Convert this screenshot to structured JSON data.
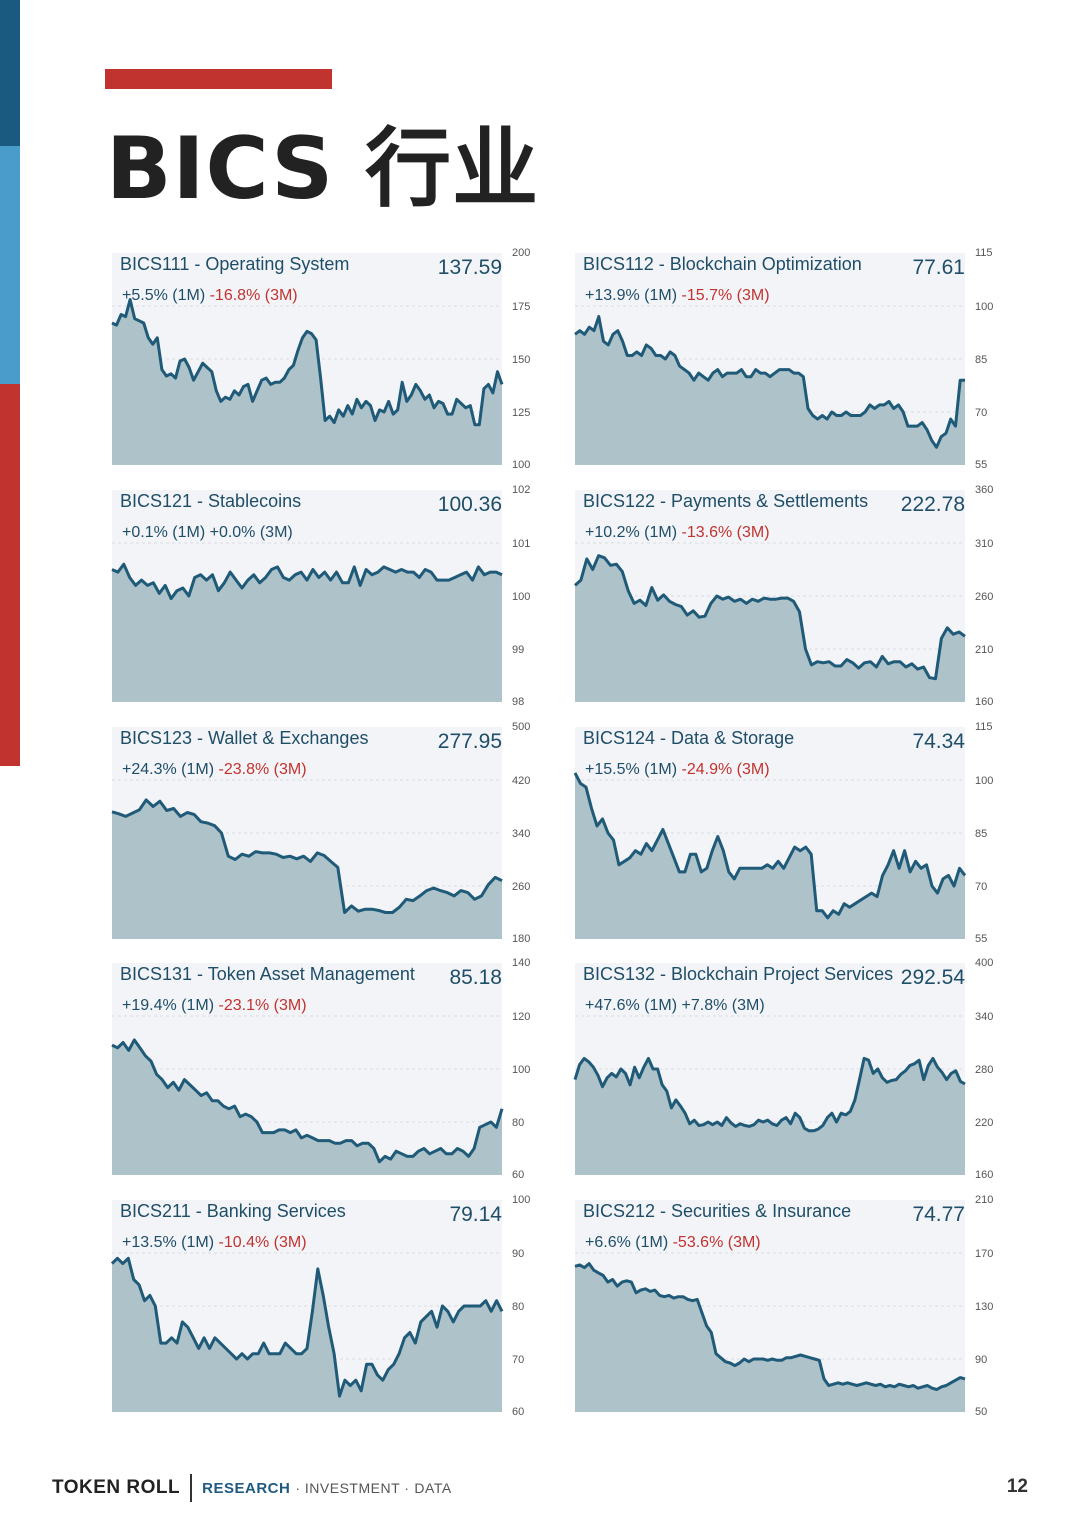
{
  "page_title": "BICS 行业",
  "colors": {
    "dark_blue": "#1a5a80",
    "light_blue": "#4a9ccb",
    "red": "#c1332f",
    "line": "#1f5a78",
    "fill": "#adc2c9",
    "panel": "#f3f4f8"
  },
  "footer": {
    "brand": "TOKEN ROLL",
    "tag_research": "RESEARCH",
    "tag_investment": "· INVESTMENT ·",
    "tag_data": "DATA"
  },
  "page_number": "12",
  "chart_data": [
    {
      "type": "area",
      "title": "BICS111 - Operating System",
      "value": "137.59",
      "perf_1m": "+5.5% (1M)",
      "perf_3m": "-16.8% (3M)",
      "yticks": [
        "200",
        "175",
        "150",
        "125",
        "100"
      ],
      "ylim": [
        100,
        200
      ],
      "values": [
        167,
        166,
        171,
        170,
        178,
        169,
        168,
        167,
        160,
        157,
        160,
        145,
        142,
        143,
        141,
        149,
        150,
        146,
        140,
        144,
        148,
        146,
        144,
        135,
        130,
        132,
        131,
        135,
        133,
        137,
        138,
        130,
        135,
        140,
        141,
        138,
        139,
        139,
        141,
        145,
        147,
        154,
        160,
        163,
        162,
        159,
        141,
        121,
        123,
        120,
        126,
        123,
        128,
        124,
        131,
        127,
        130,
        128,
        121,
        126,
        125,
        130,
        124,
        126,
        139,
        130,
        133,
        138,
        135,
        131,
        133,
        127,
        130,
        129,
        124,
        124,
        131,
        129,
        127,
        128,
        119,
        119,
        136,
        138,
        134,
        144,
        138
      ]
    },
    {
      "type": "area",
      "title": "BICS112 - Blockchain Optimization",
      "value": "77.61",
      "perf_1m": "+13.9% (1M)",
      "perf_3m": "-15.7% (3M)",
      "yticks": [
        "115",
        "100",
        "85",
        "70",
        "55"
      ],
      "ylim": [
        55,
        115
      ],
      "values": [
        92,
        93,
        92,
        94,
        93,
        97,
        90,
        89,
        92,
        93,
        90,
        86,
        86,
        87,
        86,
        89,
        88,
        86,
        86,
        85,
        87,
        86,
        83,
        82,
        81,
        79,
        81,
        80,
        79,
        81,
        82,
        80,
        81,
        81,
        81,
        82,
        80,
        80,
        82,
        81,
        81,
        80,
        81,
        82,
        82,
        82,
        81,
        81,
        80,
        71,
        69,
        68,
        69,
        68,
        70,
        69,
        69,
        70,
        69,
        69,
        69,
        70,
        72,
        71,
        72,
        72,
        73,
        71,
        72,
        70,
        66,
        66,
        66,
        67,
        65,
        62,
        60,
        63,
        64,
        68,
        66,
        79,
        79
      ]
    },
    {
      "type": "area",
      "title": "BICS121 - Stablecoins",
      "value": "100.36",
      "perf_1m": "+0.1% (1M)",
      "perf_3m": "+0.0% (3M)",
      "yticks": [
        "102",
        "101",
        "100",
        "99",
        "98"
      ],
      "ylim": [
        98,
        102
      ],
      "values": [
        100.5,
        100.45,
        100.6,
        100.35,
        100.2,
        100.3,
        100.2,
        100.25,
        100.05,
        100.2,
        99.95,
        100.1,
        100.15,
        100,
        100.35,
        100.4,
        100.3,
        100.4,
        100.1,
        100.25,
        100.45,
        100.3,
        100.15,
        100.3,
        100.4,
        100.25,
        100.35,
        100.5,
        100.55,
        100.35,
        100.3,
        100.4,
        100.45,
        100.3,
        100.5,
        100.35,
        100.45,
        100.3,
        100.45,
        100.25,
        100.25,
        100.55,
        100.2,
        100.5,
        100.4,
        100.45,
        100.55,
        100.5,
        100.45,
        100.5,
        100.45,
        100.45,
        100.35,
        100.5,
        100.45,
        100.3,
        100.3,
        100.3,
        100.35,
        100.4,
        100.45,
        100.3,
        100.55,
        100.4,
        100.45,
        100.45,
        100.4
      ]
    },
    {
      "type": "area",
      "title": "BICS122 - Payments & Settlements",
      "value": "222.78",
      "perf_1m": "+10.2% (1M)",
      "perf_3m": "-13.6% (3M)",
      "yticks": [
        "360",
        "310",
        "260",
        "210",
        "160"
      ],
      "ylim": [
        160,
        360
      ],
      "values": [
        270,
        275,
        295,
        285,
        298,
        296,
        289,
        290,
        283,
        265,
        253,
        256,
        251,
        268,
        256,
        261,
        255,
        252,
        250,
        242,
        246,
        240,
        241,
        253,
        260,
        257,
        259,
        255,
        257,
        253,
        257,
        255,
        258,
        257,
        257,
        258,
        258,
        255,
        245,
        210,
        195,
        198,
        197,
        198,
        194,
        194,
        200,
        197,
        192,
        197,
        198,
        193,
        203,
        196,
        198,
        198,
        193,
        196,
        191,
        193,
        183,
        182,
        220,
        230,
        224,
        226,
        222
      ]
    },
    {
      "type": "area",
      "title": "BICS123 - Wallet & Exchanges",
      "value": "277.95",
      "perf_1m": "+24.3% (1M)",
      "perf_3m": "-23.8% (3M)",
      "yticks": [
        "500",
        "420",
        "340",
        "260",
        "180"
      ],
      "ylim": [
        180,
        500
      ],
      "values": [
        372,
        369,
        365,
        370,
        375,
        390,
        380,
        388,
        374,
        377,
        365,
        371,
        368,
        357,
        355,
        351,
        340,
        305,
        300,
        308,
        305,
        312,
        310,
        310,
        308,
        303,
        305,
        301,
        305,
        297,
        310,
        306,
        297,
        288,
        220,
        230,
        222,
        225,
        225,
        223,
        220,
        220,
        228,
        240,
        238,
        245,
        253,
        257,
        253,
        250,
        245,
        253,
        250,
        240,
        245,
        262,
        273,
        268
      ]
    },
    {
      "type": "area",
      "title": "BICS124 - Data & Storage",
      "value": "74.34",
      "perf_1m": "+15.5% (1M)",
      "perf_3m": "-24.9% (3M)",
      "yticks": [
        "115",
        "100",
        "85",
        "70",
        "55"
      ],
      "ylim": [
        55,
        115
      ],
      "values": [
        102,
        99,
        98,
        92,
        87,
        89,
        85,
        83,
        76,
        77,
        78,
        80,
        79,
        82,
        80,
        83,
        86,
        82,
        78,
        74,
        74,
        79,
        79,
        74,
        75,
        80,
        84,
        80,
        74,
        72,
        75,
        75,
        75,
        75,
        75,
        76,
        75,
        77,
        75,
        78,
        81,
        80,
        81,
        79,
        63,
        63,
        61,
        63,
        62,
        65,
        64,
        65,
        66,
        67,
        68,
        67,
        73,
        76,
        80,
        75,
        80,
        74,
        77,
        75,
        76,
        70,
        68,
        72,
        73,
        70,
        75,
        73
      ]
    },
    {
      "type": "area",
      "title": "BICS131 - Token Asset Management",
      "value": "85.18",
      "perf_1m": "+19.4% (1M)",
      "perf_3m": "-23.1% (3M)",
      "yticks": [
        "140",
        "120",
        "100",
        "80",
        "60"
      ],
      "ylim": [
        60,
        140
      ],
      "values": [
        109,
        108,
        110,
        107,
        111,
        108,
        105,
        103,
        98,
        96,
        93,
        95,
        92,
        96,
        94,
        92,
        90,
        91,
        88,
        88,
        86,
        85,
        86,
        82,
        83,
        82,
        80,
        76,
        76,
        76,
        77,
        77,
        76,
        77,
        74,
        75,
        74,
        73,
        73,
        73,
        72,
        72,
        73,
        73,
        71,
        72,
        72,
        70,
        65,
        67,
        66,
        69,
        68,
        67,
        67,
        69,
        70,
        68,
        69,
        70,
        68,
        68,
        70,
        69,
        67,
        70,
        78,
        79,
        80,
        78,
        85
      ]
    },
    {
      "type": "area",
      "title": "BICS132 - Blockchain Project Services",
      "value": "292.54",
      "perf_1m": "+47.6% (1M)",
      "perf_3m": "+7.8% (3M)",
      "yticks": [
        "400",
        "340",
        "280",
        "220",
        "160"
      ],
      "ylim": [
        160,
        400
      ],
      "values": [
        268,
        285,
        292,
        288,
        282,
        273,
        260,
        270,
        275,
        271,
        280,
        275,
        262,
        282,
        270,
        282,
        292,
        280,
        280,
        262,
        255,
        236,
        245,
        238,
        230,
        218,
        222,
        216,
        217,
        220,
        217,
        220,
        216,
        225,
        219,
        215,
        218,
        216,
        215,
        217,
        222,
        220,
        222,
        218,
        216,
        222,
        225,
        218,
        230,
        225,
        213,
        210,
        210,
        212,
        216,
        225,
        230,
        220,
        230,
        228,
        232,
        245,
        268,
        292,
        290,
        275,
        280,
        270,
        265,
        267,
        268,
        274,
        278,
        284,
        286,
        290,
        268,
        284,
        292,
        282,
        276,
        268,
        275,
        278,
        266,
        263
      ]
    },
    {
      "type": "area",
      "title": "BICS211 - Banking Services",
      "value": "79.14",
      "perf_1m": "+13.5% (1M)",
      "perf_3m": "-10.4% (3M)",
      "yticks": [
        "100",
        "90",
        "80",
        "70",
        "60"
      ],
      "ylim": [
        60,
        100
      ],
      "values": [
        88,
        89,
        88,
        89,
        85,
        84,
        81,
        82,
        80,
        73,
        73,
        74,
        73,
        77,
        76,
        74,
        72,
        74,
        72,
        74,
        73,
        72,
        71,
        70,
        71,
        70,
        71,
        71,
        73,
        71,
        71,
        71,
        73,
        72,
        71,
        71,
        72,
        79,
        87,
        82,
        76,
        71,
        63,
        66,
        65,
        66,
        64,
        69,
        69,
        67,
        66,
        68,
        69,
        71,
        74,
        75,
        73,
        77,
        78,
        79,
        76,
        80,
        79,
        77,
        79,
        80,
        80,
        80,
        80,
        81,
        79,
        81,
        79
      ]
    },
    {
      "type": "area",
      "title": "BICS212 - Securities & Insurance",
      "value": "74.77",
      "perf_1m": "+6.6% (1M)",
      "perf_3m": "-53.6% (3M)",
      "yticks": [
        "210",
        "170",
        "130",
        "90",
        "50"
      ],
      "ylim": [
        50,
        210
      ],
      "values": [
        160,
        161,
        159,
        162,
        157,
        155,
        153,
        148,
        150,
        145,
        148,
        149,
        148,
        140,
        142,
        143,
        141,
        142,
        138,
        137,
        138,
        136,
        137,
        137,
        135,
        134,
        135,
        125,
        115,
        110,
        94,
        91,
        88,
        87,
        85,
        87,
        90,
        88,
        90,
        90,
        90,
        89,
        90,
        89,
        89,
        91,
        91,
        92,
        93,
        92,
        91,
        90,
        89,
        75,
        70,
        71,
        72,
        71,
        72,
        71,
        70,
        71,
        72,
        71,
        70,
        71,
        69,
        70,
        69,
        71,
        70,
        69,
        70,
        68,
        69,
        70,
        68,
        67,
        69,
        70,
        72,
        74,
        76,
        75
      ]
    }
  ]
}
